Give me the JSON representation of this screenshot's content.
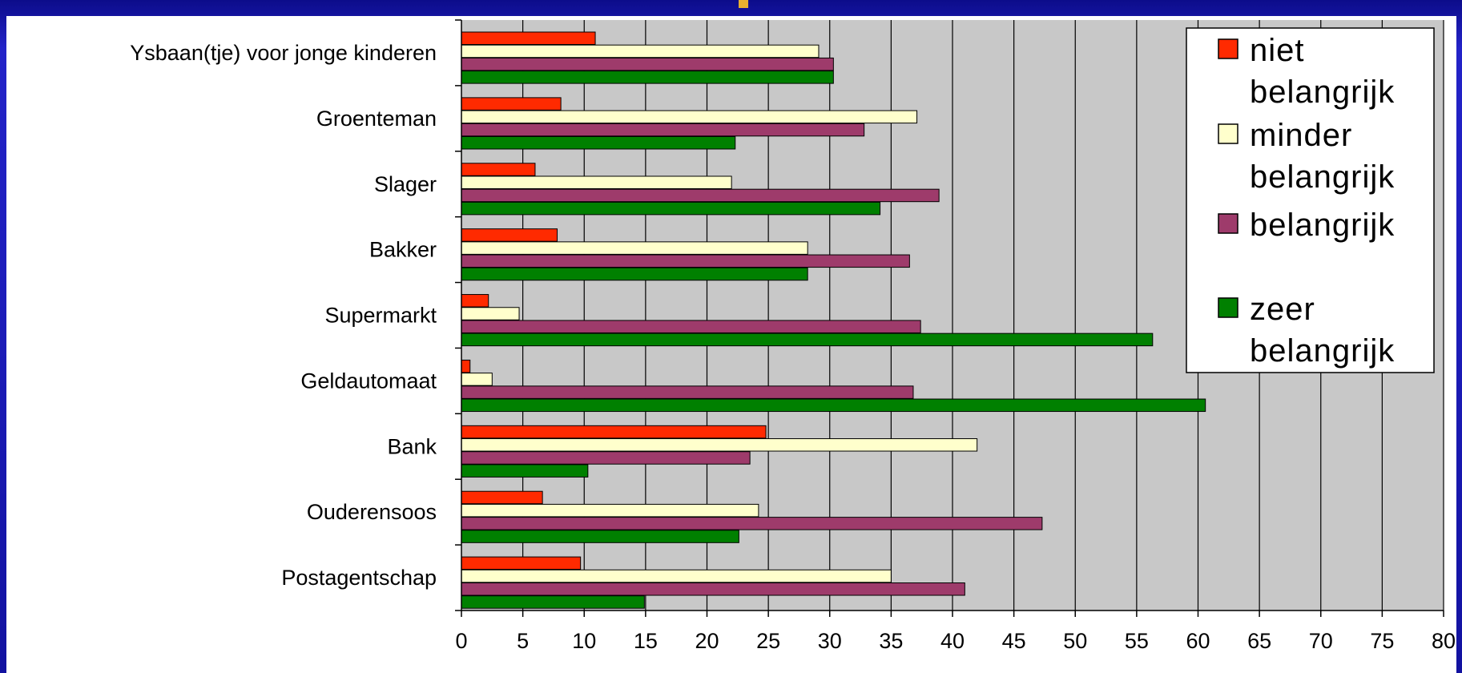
{
  "chart_data": {
    "type": "bar",
    "orientation": "horizontal",
    "categories": [
      "Ysbaan(tje) voor jonge kinderen",
      "Groenteman",
      "Slager",
      "Bakker",
      "Supermarkt",
      "Geldautomaat",
      "Bank",
      "Ouderensoos",
      "Postagentschap"
    ],
    "series": [
      {
        "name": "niet belangrijk",
        "color": "#ff2a00",
        "values": [
          10.9,
          8.1,
          6.0,
          7.8,
          2.2,
          0.7,
          24.8,
          6.6,
          9.7
        ]
      },
      {
        "name": "minder belangrijk",
        "color": "#ffffcc",
        "values": [
          29.1,
          37.1,
          22.0,
          28.2,
          4.7,
          2.5,
          42.0,
          24.2,
          35.0
        ]
      },
      {
        "name": "belangrijk",
        "color": "#9e3b6b",
        "values": [
          30.3,
          32.8,
          38.9,
          36.5,
          37.4,
          36.8,
          23.5,
          47.3,
          41.0
        ]
      },
      {
        "name": "zeer belangrijk",
        "color": "#008000",
        "values": [
          30.3,
          22.3,
          34.1,
          28.2,
          56.3,
          60.6,
          10.3,
          22.6,
          14.9
        ]
      }
    ],
    "xlim": [
      0,
      80
    ],
    "xticks": [
      "0",
      "5",
      "10",
      "15",
      "20",
      "25",
      "30",
      "35",
      "40",
      "45",
      "50",
      "55",
      "60",
      "65",
      "70",
      "75",
      "80"
    ],
    "grid": true,
    "legend": {
      "placement": "top-right",
      "lines": [
        [
          "niet",
          "belangrijk"
        ],
        [
          "minder",
          "belangrijk"
        ],
        [
          "belangrijk"
        ],
        [
          "zeer",
          "belangrijk"
        ]
      ]
    },
    "colors": {
      "plot_bg": "#c8c8c8",
      "slide_bg": "#1c1cb8"
    }
  }
}
